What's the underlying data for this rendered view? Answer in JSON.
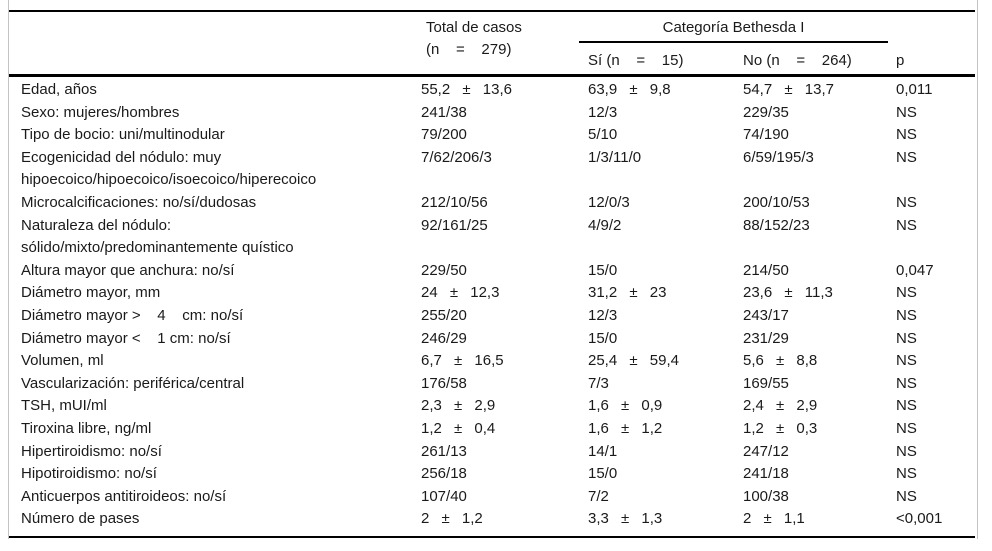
{
  "table": {
    "header": {
      "total_line1": "Total de casos",
      "total_line2": "(n    =    279)",
      "group_label": "Categoría Bethesda I",
      "sub_yes": "Sí (n    =    15)",
      "sub_no": "No (n    =    264)",
      "p_label": "p"
    },
    "rows": [
      {
        "label": "Edad, años",
        "total": "55,2 ± 13,6",
        "yes": "63,9 ± 9,8",
        "no": "54,7 ± 13,7",
        "p": "0,011"
      },
      {
        "label": "Sexo: mujeres/hombres",
        "total": "241/38",
        "yes": "12/3",
        "no": "229/35",
        "p": "NS"
      },
      {
        "label": "Tipo de bocio: uni/multinodular",
        "total": "79/200",
        "yes": "5/10",
        "no": "74/190",
        "p": "NS"
      },
      {
        "label": "Ecogenicidad del nódulo: muy\nhipoecoico/hipoecoico/isoecoico/hiperecoico",
        "total": "7/62/206/3",
        "yes": "1/3/11/0",
        "no": "6/59/195/3",
        "p": "NS"
      },
      {
        "label": "Microcalcificaciones: no/sí/dudosas",
        "total": "212/10/56",
        "yes": "12/0/3",
        "no": "200/10/53",
        "p": "NS"
      },
      {
        "label": "Naturaleza del nódulo:\nsólido/mixto/predominantemente quístico",
        "total": "92/161/25",
        "yes": "4/9/2",
        "no": "88/152/23",
        "p": "NS"
      },
      {
        "label": "Altura mayor que anchura: no/sí",
        "total": "229/50",
        "yes": "15/0",
        "no": "214/50",
        "p": "0,047"
      },
      {
        "label": "Diámetro mayor, mm",
        "total": "24 ± 12,3",
        "yes": "31,2 ± 23",
        "no": "23,6 ± 11,3",
        "p": "NS"
      },
      {
        "label": "Diámetro mayor >    4    cm: no/sí",
        "total": "255/20",
        "yes": "12/3",
        "no": "243/17",
        "p": "NS"
      },
      {
        "label": "Diámetro mayor <    1 cm: no/sí",
        "total": "246/29",
        "yes": "15/0",
        "no": "231/29",
        "p": "NS"
      },
      {
        "label": "Volumen, ml",
        "total": "6,7 ± 16,5",
        "yes": "25,4 ± 59,4",
        "no": "5,6 ± 8,8",
        "p": "NS"
      },
      {
        "label": "Vascularización: periférica/central",
        "total": "176/58",
        "yes": "7/3",
        "no": "169/55",
        "p": "NS"
      },
      {
        "label": "TSH, mUI/ml",
        "total": "2,3 ± 2,9",
        "yes": "1,6 ± 0,9",
        "no": "2,4 ± 2,9",
        "p": "NS"
      },
      {
        "label": "Tiroxina libre, ng/ml",
        "total": "1,2 ± 0,4",
        "yes": "1,6 ± 1,2",
        "no": "1,2 ± 0,3",
        "p": "NS"
      },
      {
        "label": "Hipertiroidismo: no/sí",
        "total": "261/13",
        "yes": "14/1",
        "no": "247/12",
        "p": "NS"
      },
      {
        "label": "Hipotiroidismo: no/sí",
        "total": "256/18",
        "yes": "15/0",
        "no": "241/18",
        "p": "NS"
      },
      {
        "label": "Anticuerpos antitiroideos: no/sí",
        "total": "107/40",
        "yes": "7/2",
        "no": "100/38",
        "p": "NS"
      },
      {
        "label": "Número de pases",
        "total": "2 ± 1,2",
        "yes": "3,3 ± 1,3",
        "no": "2 ± 1,1",
        "p": "<0,001"
      }
    ]
  }
}
